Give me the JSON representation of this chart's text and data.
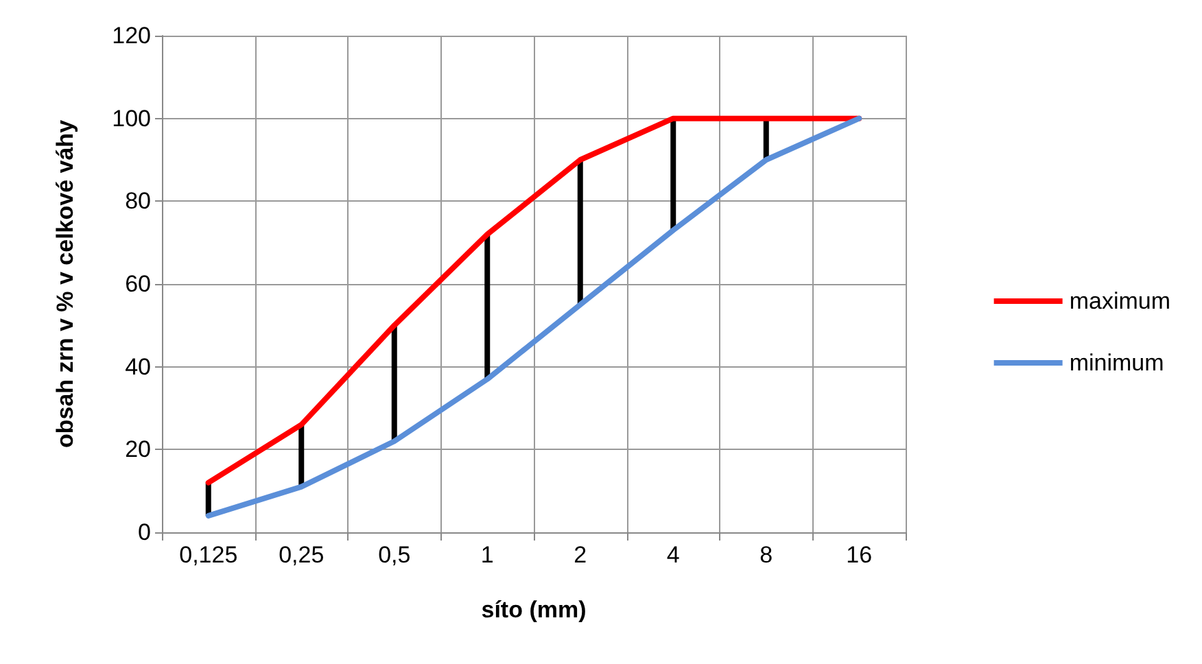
{
  "chart_data": {
    "type": "line",
    "xlabel": "síto (mm)",
    "ylabel": "obsah zrn v % v celkové váhy",
    "categories": [
      "0,125",
      "0,25",
      "0,5",
      "1",
      "2",
      "4",
      "8",
      "16"
    ],
    "ylim": [
      0,
      120
    ],
    "yticks": [
      0,
      20,
      40,
      60,
      80,
      100,
      120
    ],
    "grid": true,
    "legend": "right",
    "marker": "none",
    "line_style": "solid",
    "series": [
      {
        "name": "maximum",
        "color": "#ff0000",
        "values": [
          12,
          26,
          50,
          72,
          90,
          100,
          100,
          100
        ]
      },
      {
        "name": "minimum",
        "color": "#5b8fd9",
        "values": [
          4,
          11,
          22,
          37,
          55,
          73,
          90,
          100
        ]
      },
      {
        "type": "bar",
        "color": "#000000",
        "base": [
          4,
          11,
          22,
          37,
          55,
          73,
          90,
          null
        ],
        "values": [
          8,
          15,
          28,
          35,
          35,
          27,
          10,
          null
        ]
      }
    ]
  }
}
